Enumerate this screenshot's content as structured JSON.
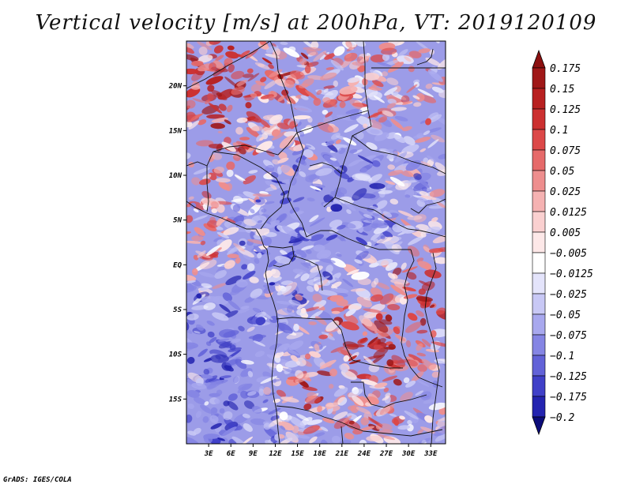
{
  "title": "Vertical velocity [m/s] at 200hPa, VT: 2019120109",
  "footer": "GrADS: IGES/COLA",
  "map": {
    "variable": "Vertical velocity",
    "units": "m/s",
    "level": "200hPa",
    "valid_time": "2019120109",
    "lon_range": [
      0,
      35
    ],
    "lat_range": [
      -20,
      25
    ],
    "lat_ticks": [
      {
        "value": 20,
        "label": "20N"
      },
      {
        "value": 15,
        "label": "15N"
      },
      {
        "value": 10,
        "label": "10N"
      },
      {
        "value": 5,
        "label": "5N"
      },
      {
        "value": 0,
        "label": "EQ"
      },
      {
        "value": -5,
        "label": "5S"
      },
      {
        "value": -10,
        "label": "10S"
      },
      {
        "value": -15,
        "label": "15S"
      }
    ],
    "lon_ticks": [
      {
        "value": 3,
        "label": "3E"
      },
      {
        "value": 6,
        "label": "6E"
      },
      {
        "value": 9,
        "label": "9E"
      },
      {
        "value": 12,
        "label": "12E"
      },
      {
        "value": 15,
        "label": "15E"
      },
      {
        "value": 18,
        "label": "18E"
      },
      {
        "value": 21,
        "label": "21E"
      },
      {
        "value": 24,
        "label": "24E"
      },
      {
        "value": 27,
        "label": "27E"
      },
      {
        "value": 30,
        "label": "30E"
      },
      {
        "value": 33,
        "label": "33E"
      }
    ]
  },
  "colorbar": {
    "levels": [
      {
        "label": "0.175",
        "color": "#a01818"
      },
      {
        "label": "0.15",
        "color": "#b82020"
      },
      {
        "label": "0.125",
        "color": "#cc3030"
      },
      {
        "label": "0.1",
        "color": "#dc4848"
      },
      {
        "label": "0.075",
        "color": "#e66a6a"
      },
      {
        "label": "0.05",
        "color": "#ee8e8e"
      },
      {
        "label": "0.025",
        "color": "#f5b2b2"
      },
      {
        "label": "0.0125",
        "color": "#fad0d0"
      },
      {
        "label": "0.005",
        "color": "#fde8e8"
      },
      {
        "label": "−0.005",
        "color": "#ffffff"
      },
      {
        "label": "−0.0125",
        "color": "#e4e4fb"
      },
      {
        "label": "−0.025",
        "color": "#c8c8f5"
      },
      {
        "label": "−0.05",
        "color": "#a8a8ee"
      },
      {
        "label": "−0.075",
        "color": "#8585e4"
      },
      {
        "label": "−0.1",
        "color": "#6262d8"
      },
      {
        "label": "−0.125",
        "color": "#4040c8"
      },
      {
        "label": "−0.175",
        "color": "#2424b0"
      },
      {
        "label": "−0.2",
        "color": "#141490"
      }
    ],
    "top_color": "#8c1010",
    "bottom_color": "#0c0c7a",
    "below_label": "−0.2"
  }
}
